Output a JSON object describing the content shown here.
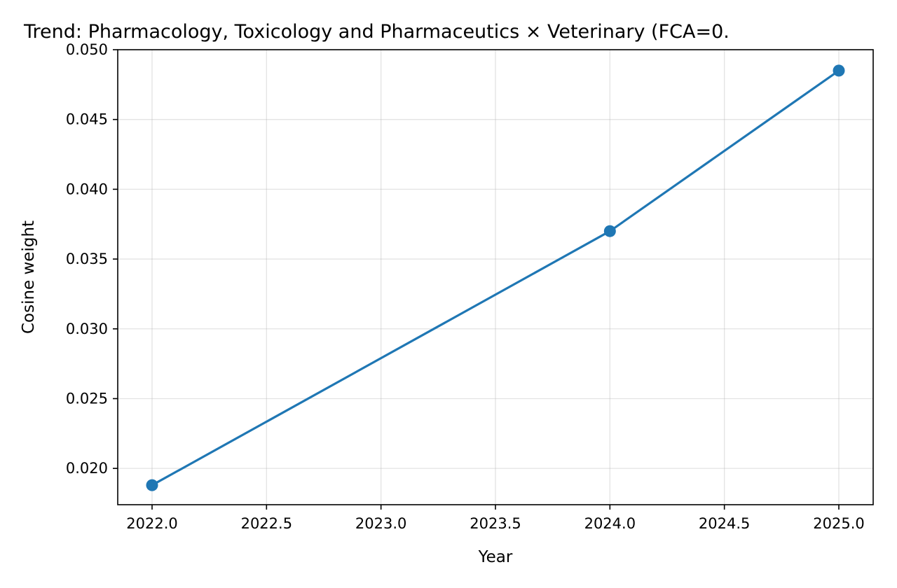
{
  "chart_data": {
    "type": "line",
    "title": "Trend: Pharmacology, Toxicology and Pharmaceutics × Veterinary  (FCA=0.",
    "xlabel": "Year",
    "ylabel": "Cosine weight",
    "xlim": [
      2021.85,
      2025.15
    ],
    "ylim": [
      0.0174,
      0.05
    ],
    "x_ticks": [
      2022.0,
      2022.5,
      2023.0,
      2023.5,
      2024.0,
      2024.5,
      2025.0
    ],
    "x_tick_labels": [
      "2022.0",
      "2022.5",
      "2023.0",
      "2023.5",
      "2024.0",
      "2024.5",
      "2025.0"
    ],
    "y_ticks": [
      0.02,
      0.025,
      0.03,
      0.035,
      0.04,
      0.045,
      0.05
    ],
    "y_tick_labels": [
      "0.020",
      "0.025",
      "0.030",
      "0.035",
      "0.040",
      "0.045",
      "0.050"
    ],
    "grid": true,
    "legend": "none",
    "series": [
      {
        "x": [
          2022,
          2024,
          2025
        ],
        "y": [
          0.0188,
          0.037,
          0.0485
        ],
        "color": "#1f77b4"
      }
    ]
  }
}
